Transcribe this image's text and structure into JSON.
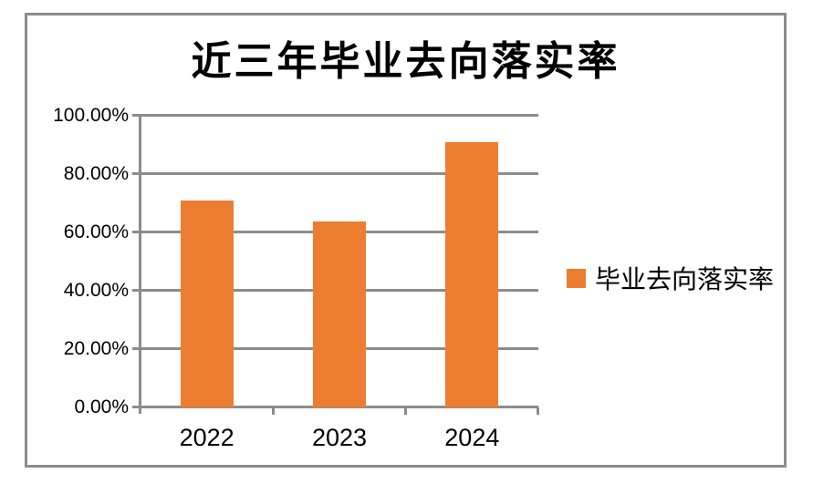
{
  "chart_data": {
    "type": "bar",
    "title": "近三年毕业去向落实率",
    "categories": [
      "2022",
      "2023",
      "2024"
    ],
    "series": [
      {
        "name": "毕业去向落实率",
        "values": [
          70.9,
          63.8,
          90.9
        ]
      }
    ],
    "xlabel": "",
    "ylabel": "",
    "ylim": [
      0,
      100
    ],
    "ytick_step": 20,
    "ytick_labels": [
      "0.00%",
      "20.00%",
      "40.00%",
      "60.00%",
      "80.00%",
      "100.00%"
    ],
    "grid": true,
    "legend_position": "right",
    "colors": {
      "bar": "#ED7D31",
      "axis": "#8C8C8C",
      "text": "#000000",
      "frame_border": "#8C8C8C",
      "background": "#FFFFFF"
    }
  }
}
